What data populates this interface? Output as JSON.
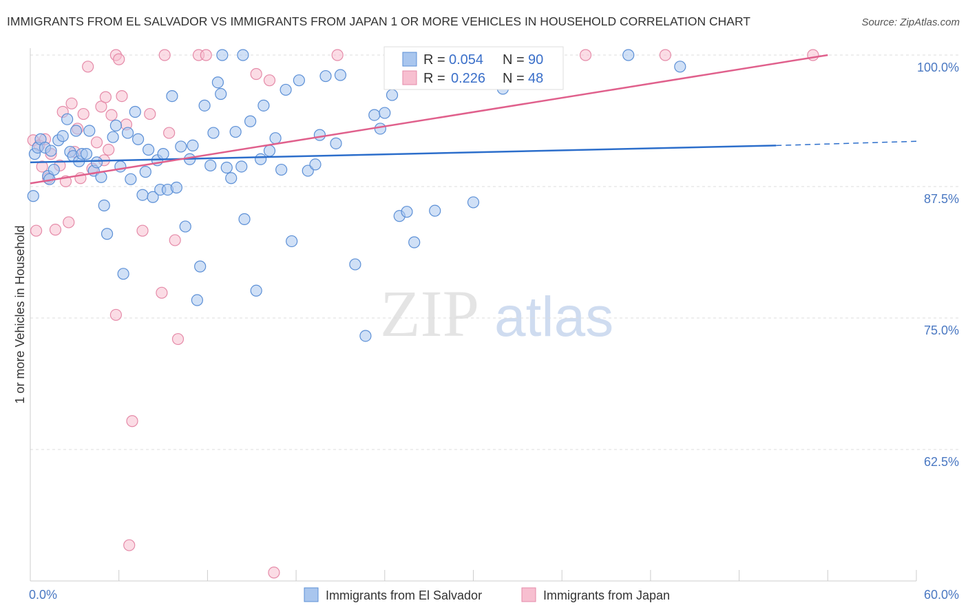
{
  "title": "IMMIGRANTS FROM EL SALVADOR VS IMMIGRANTS FROM JAPAN 1 OR MORE VEHICLES IN HOUSEHOLD CORRELATION CHART",
  "source": "Source: ZipAtlas.com",
  "watermark": {
    "zip": "ZIP",
    "atlas": "atlas"
  },
  "colors": {
    "blue_fill": "#a9c6ee",
    "blue_stroke": "#5b8fd6",
    "blue_line": "#2c6ecb",
    "pink_fill": "#f7bfd0",
    "pink_stroke": "#e58aa8",
    "pink_line": "#e0608c",
    "tick_text": "#4a78c2",
    "grid": "#dddddd"
  },
  "legend": {
    "rows": [
      {
        "r_label": "R =",
        "r_value": "0.054",
        "n_label": "N =",
        "n_value": "90"
      },
      {
        "r_label": "R =",
        "r_value": "0.226",
        "n_label": "N =",
        "n_value": "48"
      }
    ]
  },
  "chart_data": {
    "type": "scatter",
    "xlabel": "",
    "ylabel": "1 or more Vehicles in Household",
    "xlim": [
      0,
      60
    ],
    "ylim": [
      50,
      100
    ],
    "x_tick_labels": [
      "0.0%",
      "60.0%"
    ],
    "y_ticks": [
      62.5,
      75.0,
      87.5,
      100.0
    ],
    "y_tick_labels": [
      "62.5%",
      "75.0%",
      "87.5%",
      "100.0%"
    ],
    "legend_position": "top-center",
    "series": [
      {
        "name": "Immigrants from El Salvador",
        "color": "#a9c6ee",
        "r": 0.054,
        "n": 90,
        "trend": {
          "x0": 0,
          "y0": 89.8,
          "x1": 50.5,
          "y1": 91.4,
          "dash_to_x": 60,
          "dash_y": 91.8
        },
        "points": [
          [
            0.3,
            90.6
          ],
          [
            0.5,
            91.2
          ],
          [
            0.7,
            92.0
          ],
          [
            1.0,
            91.2
          ],
          [
            1.2,
            88.5
          ],
          [
            1.4,
            90.9
          ],
          [
            1.6,
            89.1
          ],
          [
            1.9,
            91.9
          ],
          [
            2.2,
            92.3
          ],
          [
            2.5,
            93.9
          ],
          [
            2.7,
            90.8
          ],
          [
            2.9,
            90.4
          ],
          [
            3.1,
            92.8
          ],
          [
            3.3,
            89.9
          ],
          [
            3.5,
            90.6
          ],
          [
            3.8,
            90.6
          ],
          [
            4.0,
            92.8
          ],
          [
            4.3,
            89.0
          ],
          [
            4.5,
            89.8
          ],
          [
            4.8,
            88.4
          ],
          [
            5.0,
            85.7
          ],
          [
            5.2,
            83.0
          ],
          [
            5.6,
            92.2
          ],
          [
            5.8,
            93.3
          ],
          [
            6.1,
            89.4
          ],
          [
            6.3,
            79.2
          ],
          [
            6.6,
            92.6
          ],
          [
            6.8,
            88.2
          ],
          [
            7.1,
            94.6
          ],
          [
            7.3,
            92.0
          ],
          [
            7.6,
            86.7
          ],
          [
            7.8,
            88.9
          ],
          [
            8.0,
            91.0
          ],
          [
            8.3,
            86.5
          ],
          [
            8.6,
            90.0
          ],
          [
            8.8,
            87.2
          ],
          [
            9.0,
            90.6
          ],
          [
            9.3,
            87.2
          ],
          [
            9.6,
            96.1
          ],
          [
            9.9,
            87.4
          ],
          [
            10.2,
            91.3
          ],
          [
            10.5,
            83.7
          ],
          [
            10.8,
            90.1
          ],
          [
            11.0,
            91.4
          ],
          [
            11.3,
            76.7
          ],
          [
            11.5,
            79.9
          ],
          [
            11.8,
            95.2
          ],
          [
            12.2,
            89.5
          ],
          [
            12.4,
            92.6
          ],
          [
            12.7,
            97.4
          ],
          [
            12.9,
            96.3
          ],
          [
            13.3,
            89.3
          ],
          [
            13.6,
            88.3
          ],
          [
            13.9,
            92.7
          ],
          [
            14.3,
            89.4
          ],
          [
            14.5,
            84.4
          ],
          [
            14.9,
            93.7
          ],
          [
            15.3,
            77.6
          ],
          [
            15.6,
            90.1
          ],
          [
            15.8,
            95.2
          ],
          [
            16.2,
            90.9
          ],
          [
            16.6,
            92.1
          ],
          [
            17.0,
            89.1
          ],
          [
            17.3,
            96.7
          ],
          [
            17.7,
            82.3
          ],
          [
            18.2,
            97.6
          ],
          [
            18.8,
            89.0
          ],
          [
            19.3,
            89.6
          ],
          [
            19.6,
            92.4
          ],
          [
            20.0,
            98.0
          ],
          [
            20.7,
            91.6
          ],
          [
            21.0,
            98.1
          ],
          [
            22.0,
            80.1
          ],
          [
            22.7,
            73.3
          ],
          [
            23.3,
            94.3
          ],
          [
            23.7,
            93.0
          ],
          [
            24.0,
            94.5
          ],
          [
            24.5,
            96.2
          ],
          [
            25.0,
            84.7
          ],
          [
            25.5,
            85.1
          ],
          [
            26.0,
            82.2
          ],
          [
            27.4,
            85.2
          ],
          [
            30.0,
            86.0
          ],
          [
            32.0,
            96.8
          ],
          [
            44.0,
            98.9
          ],
          [
            40.5,
            100.0
          ],
          [
            14.4,
            100.0
          ],
          [
            13.0,
            100.0
          ],
          [
            0.2,
            86.6
          ],
          [
            1.3,
            88.2
          ]
        ]
      },
      {
        "name": "Immigrants from Japan",
        "color": "#f7bfd0",
        "r": 0.226,
        "n": 48,
        "trend": {
          "x0": 0,
          "y0": 87.8,
          "x1": 54.0,
          "y1": 100.0
        },
        "points": [
          [
            0.2,
            91.9
          ],
          [
            0.4,
            83.3
          ],
          [
            0.6,
            91.4
          ],
          [
            0.8,
            89.4
          ],
          [
            1.0,
            92.0
          ],
          [
            1.2,
            88.3
          ],
          [
            1.4,
            90.6
          ],
          [
            1.7,
            83.4
          ],
          [
            2.0,
            89.5
          ],
          [
            2.2,
            94.6
          ],
          [
            2.4,
            88.0
          ],
          [
            2.6,
            84.1
          ],
          [
            2.8,
            95.4
          ],
          [
            3.0,
            90.8
          ],
          [
            3.2,
            93.0
          ],
          [
            3.4,
            88.3
          ],
          [
            3.6,
            94.4
          ],
          [
            3.9,
            98.9
          ],
          [
            4.2,
            89.2
          ],
          [
            4.5,
            91.7
          ],
          [
            4.8,
            95.1
          ],
          [
            5.1,
            96.0
          ],
          [
            5.3,
            91.0
          ],
          [
            5.5,
            94.3
          ],
          [
            5.8,
            100.0
          ],
          [
            6.0,
            99.6
          ],
          [
            6.2,
            96.1
          ],
          [
            6.5,
            93.4
          ],
          [
            6.9,
            65.2
          ],
          [
            6.7,
            53.4
          ],
          [
            7.6,
            83.3
          ],
          [
            8.1,
            94.4
          ],
          [
            8.9,
            77.4
          ],
          [
            9.1,
            100.0
          ],
          [
            9.4,
            92.6
          ],
          [
            9.8,
            82.4
          ],
          [
            10.0,
            73.0
          ],
          [
            11.4,
            100.0
          ],
          [
            11.9,
            100.0
          ],
          [
            15.3,
            98.2
          ],
          [
            16.2,
            97.6
          ],
          [
            16.5,
            50.8
          ],
          [
            5.8,
            75.3
          ],
          [
            20.8,
            100.0
          ],
          [
            37.6,
            100.0
          ],
          [
            43.0,
            100.0
          ],
          [
            53.0,
            100.0
          ],
          [
            5.0,
            90.0
          ]
        ]
      }
    ]
  }
}
